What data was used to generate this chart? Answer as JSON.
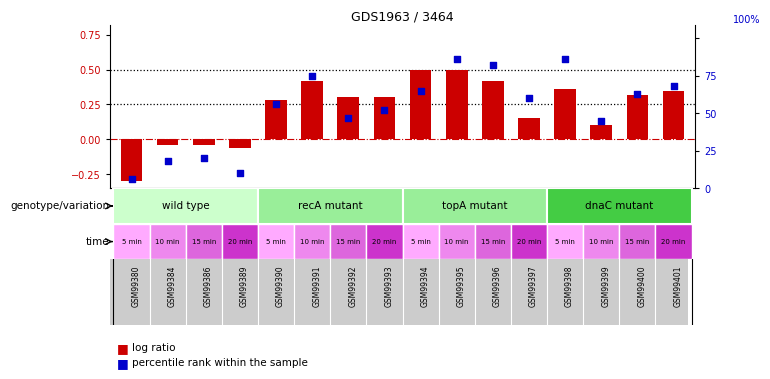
{
  "title": "GDS1963 / 3464",
  "samples": [
    "GSM99380",
    "GSM99384",
    "GSM99386",
    "GSM99389",
    "GSM99390",
    "GSM99391",
    "GSM99392",
    "GSM99393",
    "GSM99394",
    "GSM99395",
    "GSM99396",
    "GSM99397",
    "GSM99398",
    "GSM99399",
    "GSM99400",
    "GSM99401"
  ],
  "log_ratio": [
    -0.3,
    -0.04,
    -0.04,
    -0.06,
    0.28,
    0.42,
    0.3,
    0.3,
    0.5,
    0.5,
    0.42,
    0.15,
    0.36,
    0.1,
    0.32,
    0.35
  ],
  "percentile_pct": [
    6,
    18,
    20,
    10,
    56,
    75,
    47,
    52,
    65,
    86,
    82,
    60,
    86,
    45,
    63,
    68
  ],
  "bar_color": "#cc0000",
  "dot_color": "#0000cc",
  "ylim_left": [
    -0.35,
    0.82
  ],
  "ylim_right": [
    0,
    109
  ],
  "yticks_left": [
    -0.25,
    0.0,
    0.25,
    0.5,
    0.75
  ],
  "yticks_right": [
    0,
    25,
    50,
    75,
    100
  ],
  "hlines": [
    0.25,
    0.5
  ],
  "groups": [
    {
      "label": "wild type",
      "start": 0,
      "end": 4,
      "color": "#ccffcc"
    },
    {
      "label": "recA mutant",
      "start": 4,
      "end": 8,
      "color": "#99ee99"
    },
    {
      "label": "topA mutant",
      "start": 8,
      "end": 12,
      "color": "#99ee99"
    },
    {
      "label": "dnaC mutant",
      "start": 12,
      "end": 16,
      "color": "#44cc44"
    }
  ],
  "time_labels": [
    "5 min",
    "10 min",
    "15 min",
    "20 min",
    "5 min",
    "10 min",
    "15 min",
    "20 min",
    "5 min",
    "10 min",
    "15 min",
    "20 min",
    "5 min",
    "10 min",
    "15 min",
    "20 min"
  ],
  "time_colors": [
    "#ffaaff",
    "#ee88ee",
    "#dd66dd",
    "#cc33cc",
    "#ffaaff",
    "#ee88ee",
    "#dd66dd",
    "#cc33cc",
    "#ffaaff",
    "#ee88ee",
    "#dd66dd",
    "#cc33cc",
    "#ffaaff",
    "#ee88ee",
    "#dd66dd",
    "#cc33cc"
  ],
  "xlabel_geno": "genotype/variation",
  "xlabel_time": "time",
  "legend_bar_label": "log ratio",
  "legend_dot_label": "percentile rank within the sample",
  "tick_fontsize": 7,
  "label_fontsize": 7.5,
  "title_fontsize": 9
}
